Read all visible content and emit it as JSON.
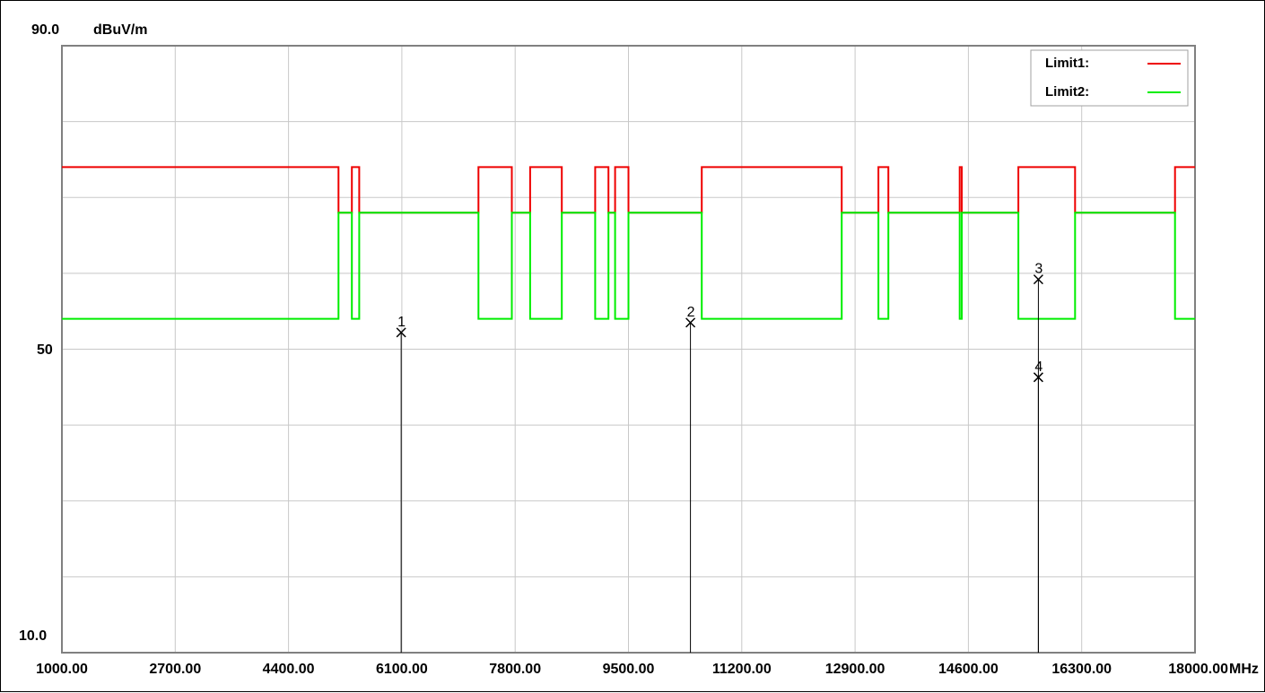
{
  "chart_data": {
    "type": "line",
    "y_unit": "dBuV/m",
    "x_unit": "MHz",
    "xlim": [
      1000,
      18000
    ],
    "ylim": [
      10,
      90
    ],
    "y_top_label": "90.0",
    "y_mid_label": "50",
    "y_bottom_label": "10.0",
    "x_ticks": [
      1000,
      2700,
      4400,
      6100,
      7800,
      9500,
      11200,
      12900,
      14600,
      16300,
      18000
    ],
    "x_tick_labels": [
      "1000.00",
      "2700.00",
      "4400.00",
      "6100.00",
      "7800.00",
      "9500.00",
      "11200.00",
      "12900.00",
      "14600.00",
      "16300.00",
      "18000.00"
    ],
    "grid": true,
    "legend_position": "top-right",
    "legend": [
      {
        "name": "Limit1:",
        "color": "#ee0000"
      },
      {
        "name": "Limit2:",
        "color": "#00ee00"
      }
    ],
    "series": [
      {
        "name": "Limit1:",
        "color": "#ee0000",
        "points": [
          [
            1000,
            74
          ],
          [
            5150,
            74
          ],
          [
            5150,
            68
          ],
          [
            5350,
            68
          ],
          [
            5350,
            74
          ],
          [
            5460,
            74
          ],
          [
            5460,
            68
          ],
          [
            7250,
            68
          ],
          [
            7250,
            74
          ],
          [
            7750,
            74
          ],
          [
            7750,
            68
          ],
          [
            8025,
            68
          ],
          [
            8025,
            74
          ],
          [
            8500,
            74
          ],
          [
            8500,
            68
          ],
          [
            9000,
            68
          ],
          [
            9000,
            74
          ],
          [
            9200,
            74
          ],
          [
            9200,
            68
          ],
          [
            9300,
            68
          ],
          [
            9300,
            74
          ],
          [
            9500,
            74
          ],
          [
            9500,
            68
          ],
          [
            10600,
            68
          ],
          [
            10600,
            74
          ],
          [
            12700,
            74
          ],
          [
            12700,
            68
          ],
          [
            13250,
            68
          ],
          [
            13250,
            74
          ],
          [
            13400,
            74
          ],
          [
            13400,
            68
          ],
          [
            14470,
            68
          ],
          [
            14470,
            74
          ],
          [
            14500,
            74
          ],
          [
            14500,
            68
          ],
          [
            15350,
            68
          ],
          [
            15350,
            74
          ],
          [
            16200,
            74
          ],
          [
            16200,
            68
          ],
          [
            17700,
            68
          ],
          [
            17700,
            74
          ],
          [
            18000,
            74
          ]
        ]
      },
      {
        "name": "Limit2:",
        "color": "#00ee00",
        "points": [
          [
            1000,
            54
          ],
          [
            5150,
            54
          ],
          [
            5150,
            68
          ],
          [
            5350,
            68
          ],
          [
            5350,
            54
          ],
          [
            5460,
            54
          ],
          [
            5460,
            68
          ],
          [
            7250,
            68
          ],
          [
            7250,
            54
          ],
          [
            7750,
            54
          ],
          [
            7750,
            68
          ],
          [
            8025,
            68
          ],
          [
            8025,
            54
          ],
          [
            8500,
            54
          ],
          [
            8500,
            68
          ],
          [
            9000,
            68
          ],
          [
            9000,
            54
          ],
          [
            9200,
            54
          ],
          [
            9200,
            68
          ],
          [
            9300,
            68
          ],
          [
            9300,
            54
          ],
          [
            9500,
            54
          ],
          [
            9500,
            68
          ],
          [
            10600,
            68
          ],
          [
            10600,
            54
          ],
          [
            12700,
            54
          ],
          [
            12700,
            68
          ],
          [
            13250,
            68
          ],
          [
            13250,
            54
          ],
          [
            13400,
            54
          ],
          [
            13400,
            68
          ],
          [
            14470,
            68
          ],
          [
            14470,
            54
          ],
          [
            14500,
            54
          ],
          [
            14500,
            68
          ],
          [
            15350,
            68
          ],
          [
            15350,
            54
          ],
          [
            16200,
            54
          ],
          [
            16200,
            68
          ],
          [
            17700,
            68
          ],
          [
            17700,
            54
          ],
          [
            18000,
            54
          ]
        ]
      }
    ],
    "markers": [
      {
        "label": "1",
        "x": 6090,
        "y": 52.2
      },
      {
        "label": "2",
        "x": 10430,
        "y": 53.5
      },
      {
        "label": "3",
        "x": 15650,
        "y": 59.2
      },
      {
        "label": "4",
        "x": 15650,
        "y": 46.3
      }
    ]
  }
}
